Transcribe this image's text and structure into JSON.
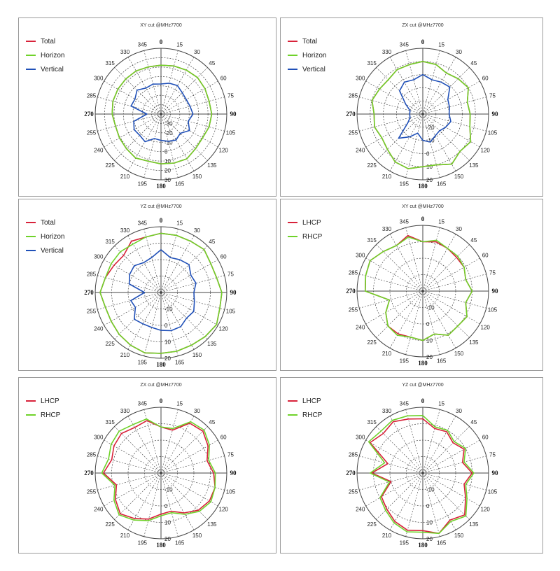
{
  "colors": {
    "total": "#d8223a",
    "horizon": "#6fd22a",
    "vertical": "#2050b8",
    "lhcp": "#d8223a",
    "rhcp": "#6fd22a"
  },
  "angle_labels": [
    "0",
    "15",
    "30",
    "45",
    "60",
    "75",
    "90",
    "105",
    "120",
    "135",
    "150",
    "165",
    "180",
    "195",
    "210",
    "225",
    "240",
    "255",
    "270",
    "285",
    "300",
    "315",
    "330",
    "345"
  ],
  "chart_data": [
    {
      "type": "radar",
      "title": "XY cut @MHz7700",
      "radial_ticks": [
        "-30",
        "-20",
        "-10",
        "0",
        "10",
        "20",
        "30"
      ],
      "rlim": [
        -40,
        30
      ],
      "legend_placement": "top-left",
      "series": [
        {
          "name": "Total",
          "color_key": "total",
          "values": [
            12,
            13,
            14,
            15,
            14,
            13,
            14,
            13,
            11,
            12,
            15,
            14,
            13,
            12,
            14,
            12,
            11,
            10,
            12,
            13,
            13,
            13,
            13,
            12
          ]
        },
        {
          "name": "Horizon",
          "color_key": "horizon",
          "values": [
            12,
            13,
            14,
            15,
            14,
            13,
            14,
            13,
            11,
            12,
            15,
            14,
            13,
            12,
            14,
            12,
            11,
            10,
            12,
            13,
            13,
            13,
            13,
            12
          ]
        },
        {
          "name": "Vertical",
          "color_key": "vertical",
          "values": [
            -8,
            -6,
            -5,
            -8,
            -9,
            -8,
            -6,
            -10,
            -5,
            -11,
            -8,
            -10,
            -12,
            -13,
            -6,
            -8,
            -7,
            -10,
            -25,
            -7,
            -8,
            -4,
            -8,
            -7
          ]
        }
      ]
    },
    {
      "type": "radar",
      "title": "ZX cut @MHz7700",
      "radial_ticks": [
        "-20",
        "-10",
        "0",
        "10",
        "20"
      ],
      "rlim": [
        -30,
        20
      ],
      "legend_placement": "top-left",
      "series": [
        {
          "name": "Total",
          "color_key": "total",
          "values": [
            10,
            9,
            6,
            8,
            10,
            5,
            6,
            7,
            12,
            10,
            14,
            10,
            10,
            13,
            12,
            8,
            6,
            8,
            7,
            10,
            8,
            7,
            9,
            9
          ]
        },
        {
          "name": "Horizon",
          "color_key": "horizon",
          "values": [
            10,
            9,
            6,
            8,
            10,
            5,
            6,
            7,
            12,
            10,
            14,
            10,
            10,
            13,
            12,
            8,
            6,
            8,
            7,
            10,
            8,
            7,
            9,
            9
          ]
        },
        {
          "name": "Vertical",
          "color_key": "vertical",
          "values": [
            0,
            -3,
            -2,
            -1,
            -8,
            -9,
            -10,
            -8,
            -10,
            -12,
            -11,
            -8,
            -10,
            -15,
            -10,
            -4,
            -17,
            -20,
            -20,
            -20,
            -15,
            -5,
            -2,
            -3
          ]
        }
      ]
    },
    {
      "type": "radar",
      "title": "YZ cut @MHz7700",
      "radial_ticks": [
        "-10",
        "0",
        "10",
        "20"
      ],
      "rlim": [
        -20,
        20
      ],
      "legend_placement": "top-left",
      "series": [
        {
          "name": "Total",
          "color_key": "total",
          "values": [
            16,
            16,
            16,
            17,
            15,
            15,
            17,
            17,
            19,
            18,
            17,
            17,
            17,
            18,
            17,
            16,
            15,
            15,
            17,
            15,
            13,
            12,
            16,
            15
          ]
        },
        {
          "name": "Horizon",
          "color_key": "horizon",
          "values": [
            16,
            16,
            16,
            17,
            15,
            15,
            17,
            17,
            19,
            18,
            17,
            17,
            17,
            18,
            17,
            16,
            15,
            15,
            17,
            15,
            15,
            15,
            14,
            15
          ]
        },
        {
          "name": "Vertical",
          "color_key": "vertical",
          "values": [
            6,
            2,
            3,
            4,
            1,
            2,
            0,
            1,
            3,
            2,
            4,
            4,
            3,
            2,
            2,
            3,
            -2,
            -1,
            -10,
            0,
            2,
            3,
            1,
            2
          ]
        }
      ]
    },
    {
      "type": "radar",
      "title": "XY cut @MHz7700",
      "radial_ticks": [
        "-10",
        "0",
        "10",
        "20"
      ],
      "rlim": [
        -20,
        20
      ],
      "legend_placement": "top-left",
      "series": [
        {
          "name": "LHCP",
          "color_key": "lhcp",
          "values": [
            10,
            11,
            10,
            9,
            9,
            7,
            10,
            7,
            11,
            10,
            11,
            7,
            10,
            9,
            10,
            10,
            6,
            1,
            15,
            16,
            17,
            14,
            12,
            15
          ]
        },
        {
          "name": "RHCP",
          "color_key": "rhcp",
          "values": [
            10,
            12,
            10,
            10,
            9,
            7,
            10,
            7,
            11,
            10,
            11,
            7,
            10,
            9,
            11,
            10,
            6,
            1,
            15,
            16,
            17,
            14,
            12,
            14
          ]
        }
      ]
    },
    {
      "type": "radar",
      "title": "ZX cut @MHz7700",
      "radial_ticks": [
        "-10",
        "0",
        "10",
        "20"
      ],
      "rlim": [
        -20,
        20
      ],
      "legend_placement": "top-left",
      "series": [
        {
          "name": "LHCP",
          "color_key": "lhcp",
          "values": [
            8,
            7,
            15,
            16,
            13,
            9,
            12,
            14,
            14,
            12,
            8,
            4,
            5,
            9,
            12,
            15,
            12,
            8,
            15,
            11,
            13,
            14,
            12,
            13
          ]
        },
        {
          "name": "RHCP",
          "color_key": "rhcp",
          "values": [
            8,
            8,
            16,
            17,
            14,
            10,
            13,
            14,
            15,
            13,
            9,
            5,
            6,
            10,
            13,
            16,
            13,
            9,
            16,
            13,
            15,
            16,
            14,
            14
          ]
        }
      ]
    },
    {
      "type": "radar",
      "title": "YZ cut @MHz7700",
      "radial_ticks": [
        "-10",
        "0",
        "10",
        "20"
      ],
      "rlim": [
        -20,
        20
      ],
      "legend_placement": "top-left",
      "series": [
        {
          "name": "LHCP",
          "color_key": "lhcp",
          "values": [
            13,
            8,
            9,
            6,
            9,
            5,
            10,
            6,
            10,
            16,
            13,
            18,
            15,
            16,
            14,
            11,
            9,
            0,
            11,
            2,
            17,
            14,
            16,
            14
          ]
        },
        {
          "name": "RHCP",
          "color_key": "rhcp",
          "values": [
            15,
            9,
            10,
            7,
            10,
            6,
            11,
            7,
            11,
            17,
            14,
            18,
            16,
            17,
            15,
            12,
            10,
            1,
            12,
            4,
            18,
            16,
            17,
            16
          ]
        }
      ]
    }
  ]
}
